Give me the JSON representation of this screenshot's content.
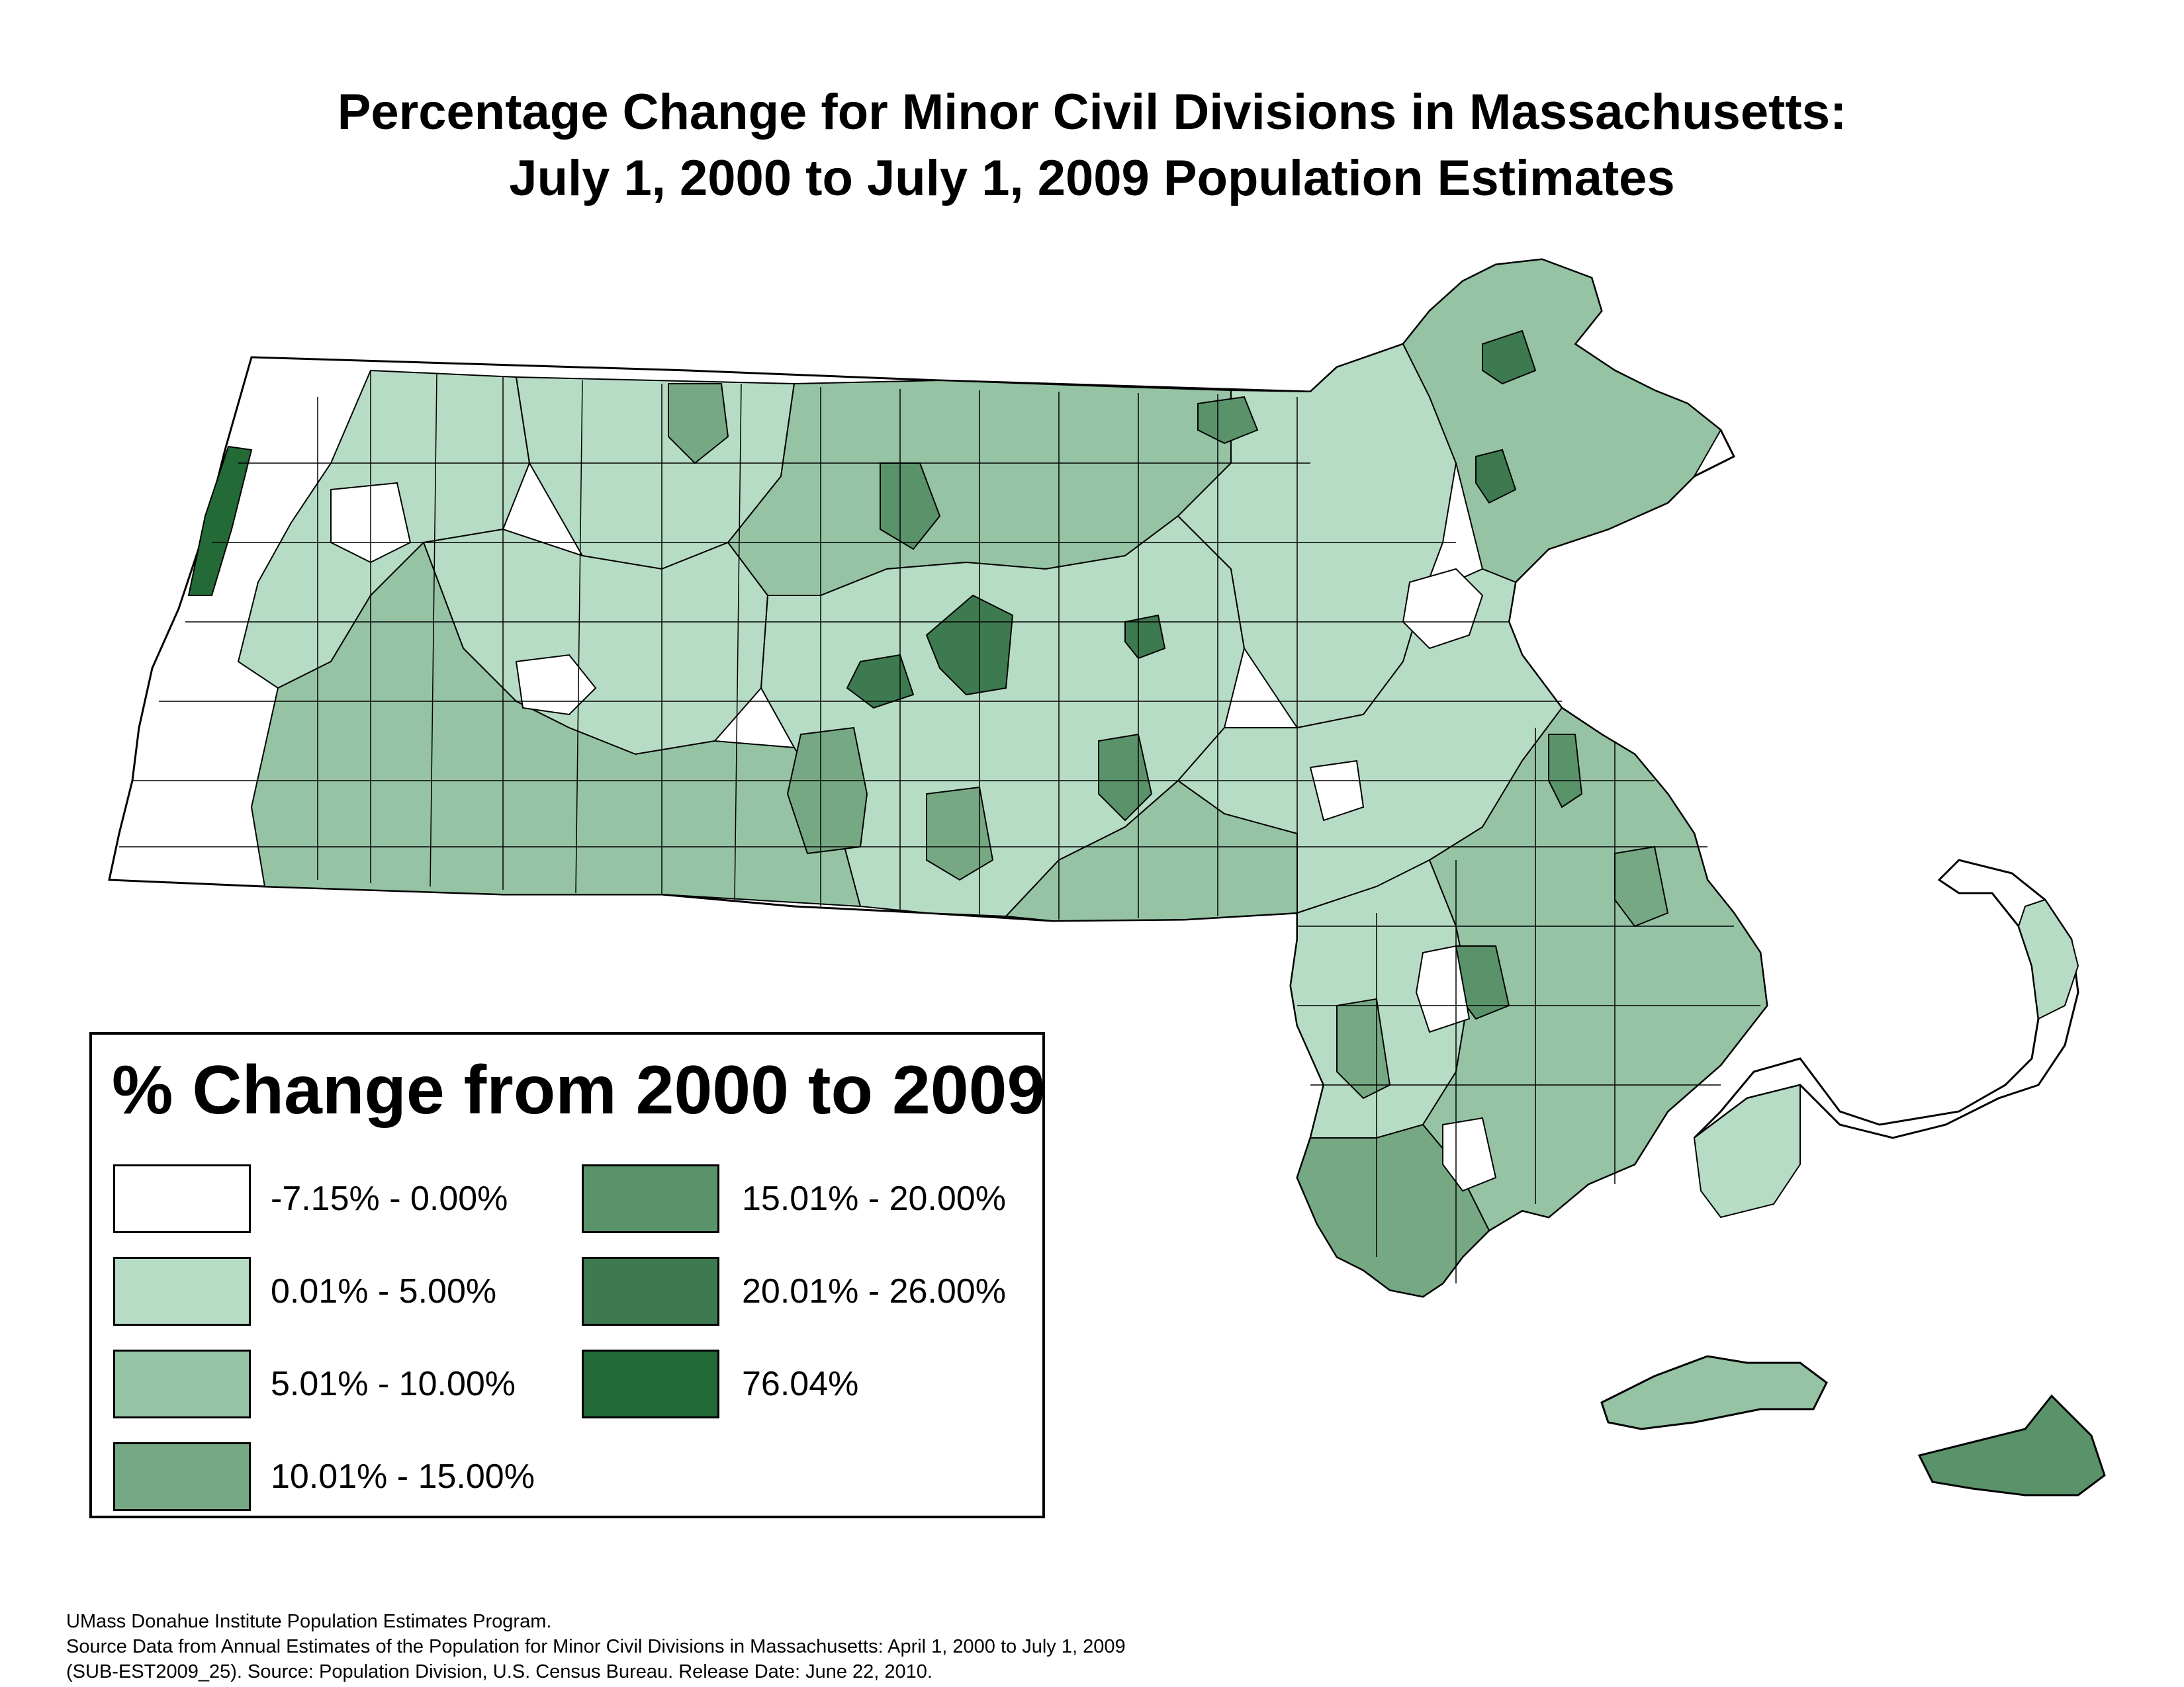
{
  "title": {
    "line1": "Percentage Change for Minor Civil Divisions in Massachusetts:",
    "line2": "July 1, 2000 to July 1, 2009 Population Estimates"
  },
  "legend": {
    "title": "% Change from 2000 to 2009",
    "items": [
      {
        "label": "-7.15% - 0.00%",
        "color": "#ffffff"
      },
      {
        "label": "0.01% - 5.00%",
        "color": "#b7dcc5"
      },
      {
        "label": "5.01% - 10.00%",
        "color": "#95c3a4"
      },
      {
        "label": "10.01% - 15.00%",
        "color": "#76a983"
      },
      {
        "label": "15.01% - 20.00%",
        "color": "#5a926a"
      },
      {
        "label": "20.01% - 26.00%",
        "color": "#3e7a4f"
      },
      {
        "label": "76.04%",
        "color": "#236a36"
      }
    ]
  },
  "footer": {
    "line1": "UMass Donahue Institute Population Estimates Program.",
    "line2": "Source Data from Annual Estimates of the Population for Minor Civil Divisions in Massachusetts: April 1, 2000 to July 1, 2009",
    "line3": "(SUB-EST2009_25). Source: Population Division, U.S. Census Bureau. Release Date: June 22, 2010."
  },
  "map": {
    "region": "Massachusetts",
    "border_color": "#000000"
  }
}
